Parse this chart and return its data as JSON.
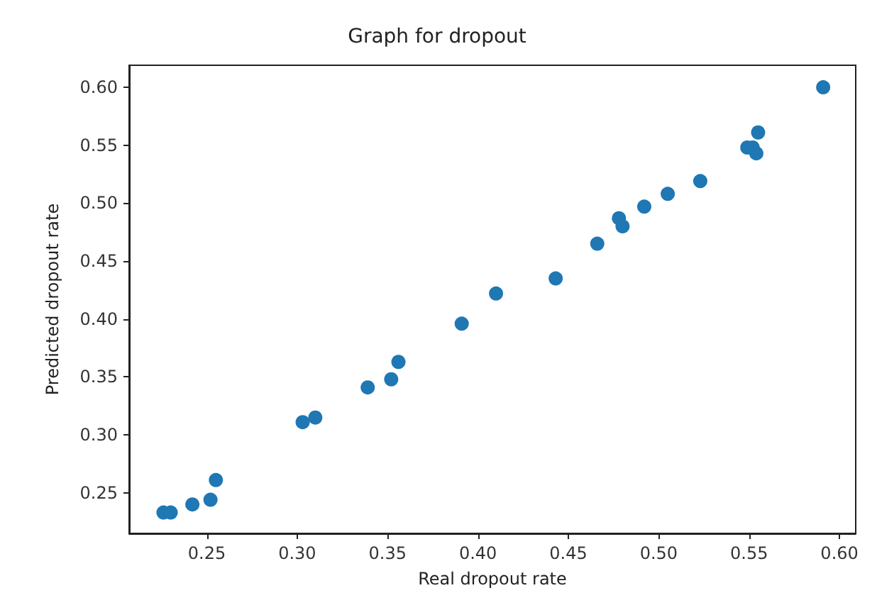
{
  "chart_data": {
    "type": "scatter",
    "title": "Graph for dropout",
    "xlabel": "Real dropout rate",
    "ylabel": "Predicted dropout rate",
    "x": [
      0.226,
      0.23,
      0.242,
      0.252,
      0.255,
      0.303,
      0.31,
      0.339,
      0.352,
      0.356,
      0.391,
      0.41,
      0.443,
      0.466,
      0.478,
      0.48,
      0.492,
      0.505,
      0.523,
      0.549,
      0.552,
      0.554,
      0.555,
      0.591
    ],
    "series": [
      {
        "color": "#1f77b4",
        "values": [
          0.233,
          0.233,
          0.24,
          0.244,
          0.261,
          0.311,
          0.315,
          0.341,
          0.348,
          0.363,
          0.396,
          0.422,
          0.435,
          0.465,
          0.487,
          0.48,
          0.497,
          0.508,
          0.519,
          0.548,
          0.548,
          0.543,
          0.561,
          0.6
        ]
      }
    ],
    "xlim": [
      0.207,
      0.609
    ],
    "ylim": [
      0.215,
      0.619
    ],
    "xticks": [
      0.25,
      {
        "value": 0.3,
        "label": "0.30"
      },
      0.35,
      {
        "value": 0.4,
        "label": "0.40"
      },
      0.45,
      {
        "value": 0.5,
        "label": "0.50"
      },
      0.55,
      {
        "value": 0.6,
        "label": "0.60"
      }
    ],
    "yticks": [
      0.25,
      {
        "value": 0.3,
        "label": "0.30"
      },
      0.35,
      {
        "value": 0.4,
        "label": "0.40"
      },
      0.45,
      {
        "value": 0.5,
        "label": "0.50"
      },
      0.55,
      {
        "value": 0.6,
        "label": "0.60"
      }
    ],
    "grid": false,
    "marker": "circle"
  }
}
